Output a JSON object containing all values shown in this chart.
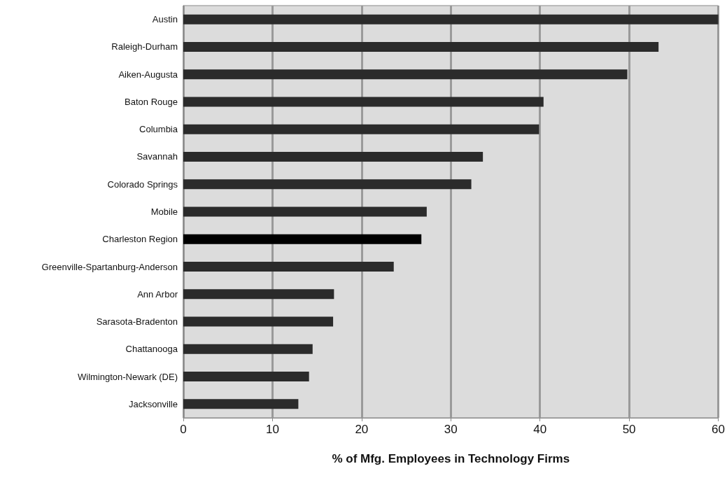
{
  "chart_data": {
    "type": "bar",
    "orientation": "horizontal",
    "xlabel": "% of Mfg. Employees in Technology Firms",
    "categories": [
      "Austin",
      "Raleigh-Durham",
      "Aiken-Augusta",
      "Baton Rouge",
      "Columbia",
      "Savannah",
      "Colorado Springs",
      "Mobile",
      "Charleston Region",
      "Greenville-Spartanburg-Anderson",
      "Ann Arbor",
      "Sarasota-Bradenton",
      "Chattanooga",
      "Wilmington-Newark (DE)",
      "Jacksonville"
    ],
    "values": [
      60,
      53.3,
      49.8,
      40.4,
      39.9,
      33.6,
      32.3,
      27.3,
      26.7,
      23.6,
      16.9,
      16.8,
      14.5,
      14.1,
      12.9
    ],
    "colors": [
      "#2b2b2b",
      "#2b2b2b",
      "#2b2b2b",
      "#2b2b2b",
      "#2b2b2b",
      "#2b2b2b",
      "#2b2b2b",
      "#2b2b2b",
      "#000000",
      "#2b2b2b",
      "#2b2b2b",
      "#2b2b2b",
      "#2b2b2b",
      "#2b2b2b",
      "#2b2b2b"
    ],
    "xlim": [
      0,
      60
    ],
    "xticks": [
      0,
      10,
      20,
      30,
      40,
      50,
      60
    ],
    "grid": "x"
  }
}
